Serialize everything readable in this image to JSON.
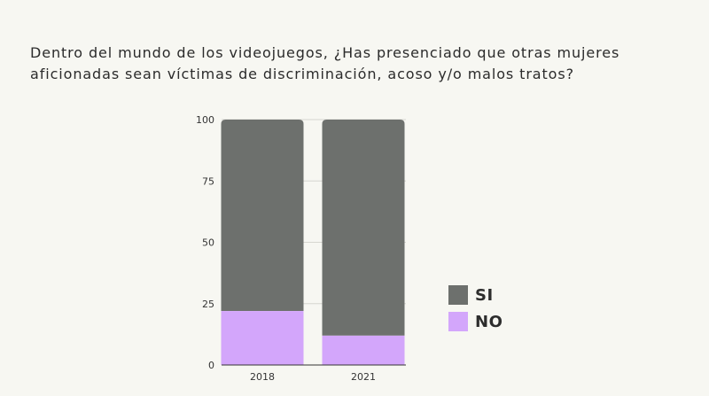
{
  "title": {
    "line1": "Dentro del mundo de los videojuegos, ¿Has presenciado que otras mujeres",
    "line2": "aficionadas sean víctimas de discriminación, acoso y/o malos tratos?"
  },
  "colors": {
    "SI": "#6d706d",
    "NO": "#d3a6fb",
    "grid": "#d6d6d0",
    "axis": "#333333",
    "background": "#f7f7f2"
  },
  "chart_data": {
    "type": "bar",
    "stacked": true,
    "categories": [
      "2018",
      "2021"
    ],
    "series": [
      {
        "name": "NO",
        "values": [
          22,
          12
        ]
      },
      {
        "name": "SI",
        "values": [
          78,
          88
        ]
      }
    ],
    "yticks": [
      "0",
      "25",
      "50",
      "75",
      "100"
    ],
    "ylim": [
      0,
      100
    ],
    "grid": true,
    "legend": [
      "SI",
      "NO"
    ],
    "legend_position": "right"
  }
}
